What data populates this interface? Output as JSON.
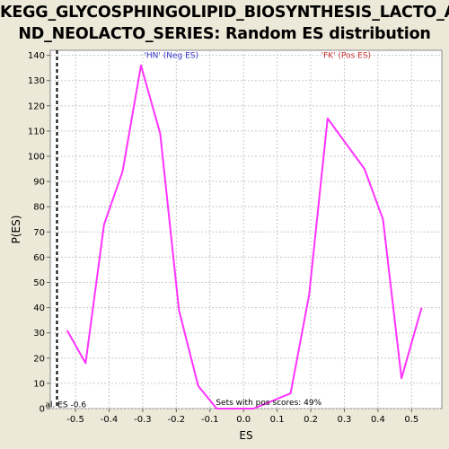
{
  "chart_data": {
    "type": "line",
    "title_lines": [
      "KEGG_GLYCOSPHINGOLIPID_BIOSYNTHESIS_LACTO_A",
      "ND_NEOLACTO_SERIES: Random ES distribution"
    ],
    "xlabel": "ES",
    "ylabel": "P(ES)",
    "xlim": [
      -0.575,
      0.59
    ],
    "ylim": [
      0,
      142
    ],
    "x_ticks": [
      -0.5,
      -0.4,
      -0.3,
      -0.2,
      -0.1,
      0.0,
      0.1,
      0.2,
      0.3,
      0.4,
      0.5
    ],
    "x_tick_labels": [
      "-0.5",
      "-0.4",
      "-0.3",
      "-0.2",
      "-0.1",
      "0.0",
      "0.1",
      "0.2",
      "0.3",
      "0.4",
      "0.5"
    ],
    "y_ticks": [
      0,
      10,
      20,
      30,
      40,
      50,
      60,
      70,
      80,
      90,
      100,
      110,
      120,
      130,
      140
    ],
    "y_tick_labels": [
      "0",
      "10",
      "20",
      "30",
      "40",
      "50",
      "60",
      "70",
      "80",
      "90",
      "100",
      "110",
      "120",
      "130",
      "140"
    ],
    "grid": true,
    "series": [
      {
        "color": "#FF33FF",
        "x": [
          -0.525,
          -0.47,
          -0.415,
          -0.36,
          -0.305,
          -0.248,
          -0.192,
          -0.135,
          -0.08,
          0.03,
          0.14,
          0.195,
          0.25,
          0.36,
          0.415,
          0.47,
          0.53
        ],
        "y": [
          31,
          18,
          73,
          94,
          136,
          109,
          39,
          9,
          0,
          0,
          6,
          45,
          115,
          95,
          75,
          12,
          40
        ]
      }
    ],
    "marker": {
      "x": -0.555,
      "label": "al. ES -0.6",
      "color": "#000000"
    },
    "annotations": [
      {
        "text": "'HN' (Neg ES)",
        "x": -0.215,
        "y": 139,
        "color": "#3333CC"
      },
      {
        "text": "'FK' (Pos ES)",
        "x": 0.305,
        "y": 139,
        "color": "#CC3333"
      },
      {
        "text": "Sets with pos scores: 49%",
        "x": 0.075,
        "y": 1.5,
        "color": "#000000"
      }
    ]
  }
}
